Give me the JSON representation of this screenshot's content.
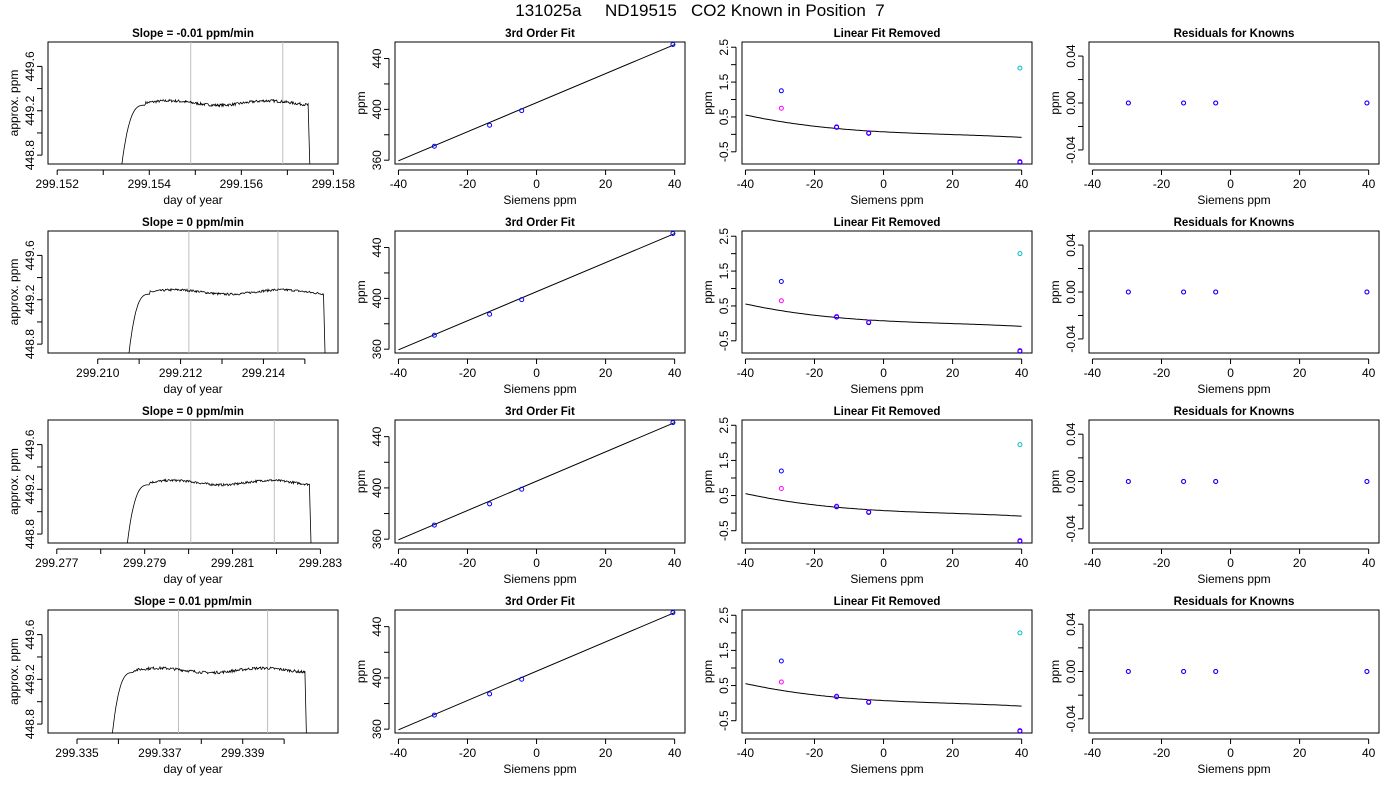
{
  "figure": {
    "title": "131025a     ND19515   CO2 Known in Position  7"
  },
  "chart_data": [
    {
      "panel": "r1c1",
      "type": "line",
      "title": "Slope =  -0.01  ppm/min",
      "xlabel": "day of year",
      "ylabel": "approx. ppm",
      "xlim": [
        299.1518,
        299.1581
      ],
      "ylim": [
        448.72,
        449.82
      ],
      "xticks": [
        299.152,
        299.153,
        299.154,
        299.155,
        299.156,
        299.157,
        299.158
      ],
      "xticklabels": [
        "299.152",
        "",
        "299.154",
        "",
        "299.156",
        "",
        "299.158"
      ],
      "yticks": [
        448.8,
        449.0,
        449.2,
        449.4,
        449.6
      ],
      "yticklabels": [
        "448.8",
        "",
        "449.2",
        "",
        "449.6"
      ],
      "vlines": [
        299.1549,
        299.1569
      ],
      "trace": {
        "x_start": 299.15335,
        "x_rise_end": 299.1539,
        "x_end": 299.15745,
        "x_drop": 299.1575,
        "plateau": 449.27,
        "noise": 0.012
      }
    },
    {
      "panel": "r1c2",
      "type": "scatter+line",
      "title": "3rd Order Fit",
      "xlabel": "Siemens ppm",
      "ylabel": "ppm",
      "xlim": [
        -41,
        43
      ],
      "ylim": [
        357,
        453
      ],
      "xticks": [
        -40,
        -20,
        0,
        20,
        40
      ],
      "xticklabels": [
        "-40",
        "-20",
        "0",
        "20",
        "40"
      ],
      "yticks": [
        360,
        380,
        400,
        420,
        440
      ],
      "yticklabels": [
        "360",
        "",
        "400",
        "",
        "440"
      ],
      "points": [
        [
          -29.6,
          371
        ],
        [
          -13.6,
          387.5
        ],
        [
          -4.3,
          399
        ],
        [
          39.5,
          451
        ]
      ],
      "fit": {
        "x0": -40,
        "x1": 40,
        "y0": 359.5,
        "y1": 451
      }
    },
    {
      "panel": "r1c3",
      "type": "scatter+line",
      "title": "Linear Fit Removed",
      "xlabel": "Siemens ppm",
      "ylabel": "ppm",
      "xlim": [
        -41,
        43
      ],
      "ylim": [
        -0.85,
        2.65
      ],
      "xticks": [
        -40,
        -20,
        0,
        20,
        40
      ],
      "xticklabels": [
        "-40",
        "-20",
        "0",
        "20",
        "40"
      ],
      "yticks": [
        -0.5,
        0.0,
        0.5,
        1.0,
        1.5,
        2.0,
        2.5
      ],
      "yticklabels": [
        "-0.5",
        "",
        "0.5",
        "",
        "1.5",
        "",
        "2.5"
      ],
      "points_blue": [
        [
          -29.6,
          1.25
        ],
        [
          -13.6,
          0.2
        ],
        [
          -4.3,
          0.03
        ],
        [
          39.5,
          -0.8
        ]
      ],
      "points_magenta": [
        [
          -29.6,
          0.75
        ],
        [
          -13.6,
          0.22
        ],
        [
          -4.3,
          0.05
        ],
        [
          39.5,
          -0.78
        ]
      ],
      "points_cyan": [
        [
          39.5,
          1.9
        ]
      ],
      "curve": [
        0.0733,
        -0.005325,
        0.0001014,
        -1.69e-06
      ]
    },
    {
      "panel": "r1c4",
      "type": "scatter",
      "title": "Residuals for Knowns",
      "xlabel": "Siemens ppm",
      "ylabel": "ppm",
      "xlim": [
        -41,
        43
      ],
      "ylim": [
        -0.052,
        0.052
      ],
      "xticks": [
        -40,
        -20,
        0,
        20,
        40
      ],
      "xticklabels": [
        "-40",
        "-20",
        "0",
        "20",
        "40"
      ],
      "yticks": [
        -0.04,
        -0.02,
        0.0,
        0.02,
        0.04
      ],
      "yticklabels": [
        "-0.04",
        "",
        "0.00",
        "",
        "0.04"
      ],
      "points": [
        [
          -29.6,
          0
        ],
        [
          -13.6,
          0
        ],
        [
          -4.3,
          0
        ],
        [
          39.5,
          0
        ]
      ]
    },
    {
      "panel": "r2c1",
      "type": "line",
      "title": "Slope =  0  ppm/min",
      "xlabel": "day of year",
      "ylabel": "approx. ppm",
      "xlim": [
        299.2088,
        299.2158
      ],
      "ylim": [
        448.72,
        449.82
      ],
      "xticks": [
        299.21,
        299.211,
        299.212,
        299.213,
        299.214,
        299.215
      ],
      "xticklabels": [
        "299.210",
        "",
        "299.212",
        "",
        "299.214",
        ""
      ],
      "yticks": [
        448.8,
        449.0,
        449.2,
        449.4,
        449.6
      ],
      "yticklabels": [
        "448.8",
        "",
        "449.2",
        "",
        "449.6"
      ],
      "vlines": [
        299.2122,
        299.21435
      ],
      "trace": {
        "x_start": 299.2107,
        "x_rise_end": 299.21125,
        "x_end": 299.21545,
        "x_drop": 299.2155,
        "plateau": 449.27,
        "noise": 0.01
      }
    },
    {
      "panel": "r2c2",
      "type": "scatter+line",
      "title": "3rd Order Fit",
      "xlabel": "Siemens ppm",
      "ylabel": "ppm",
      "xlim": [
        -41,
        43
      ],
      "ylim": [
        357,
        453
      ],
      "xticks": [
        -40,
        -20,
        0,
        20,
        40
      ],
      "xticklabels": [
        "-40",
        "-20",
        "0",
        "20",
        "40"
      ],
      "yticks": [
        360,
        380,
        400,
        420,
        440
      ],
      "yticklabels": [
        "360",
        "",
        "400",
        "",
        "440"
      ],
      "points": [
        [
          -29.6,
          371
        ],
        [
          -13.6,
          387.5
        ],
        [
          -4.3,
          399
        ],
        [
          39.5,
          451
        ]
      ],
      "fit": {
        "x0": -40,
        "x1": 40,
        "y0": 359.5,
        "y1": 451
      }
    },
    {
      "panel": "r2c3",
      "type": "scatter+line",
      "title": "Linear Fit Removed",
      "xlabel": "Siemens ppm",
      "ylabel": "ppm",
      "xlim": [
        -41,
        43
      ],
      "ylim": [
        -0.85,
        2.65
      ],
      "xticks": [
        -40,
        -20,
        0,
        20,
        40
      ],
      "xticklabels": [
        "-40",
        "-20",
        "0",
        "20",
        "40"
      ],
      "yticks": [
        -0.5,
        0.0,
        0.5,
        1.0,
        1.5,
        2.0,
        2.5
      ],
      "yticklabels": [
        "-0.5",
        "",
        "0.5",
        "",
        "1.5",
        "",
        "2.5"
      ],
      "points_blue": [
        [
          -29.6,
          1.2
        ],
        [
          -13.6,
          0.18
        ],
        [
          -4.3,
          0.02
        ],
        [
          39.5,
          -0.8
        ]
      ],
      "points_magenta": [
        [
          -29.6,
          0.65
        ],
        [
          -13.6,
          0.2
        ],
        [
          -4.3,
          0.04
        ],
        [
          39.5,
          -0.78
        ]
      ],
      "points_cyan": [
        [
          39.5,
          2.0
        ]
      ],
      "curve": [
        0.0733,
        -0.005325,
        0.0001014,
        -1.69e-06
      ]
    },
    {
      "panel": "r2c4",
      "type": "scatter",
      "title": "Residuals for Knowns",
      "xlabel": "Siemens ppm",
      "ylabel": "ppm",
      "xlim": [
        -41,
        43
      ],
      "ylim": [
        -0.052,
        0.052
      ],
      "xticks": [
        -40,
        -20,
        0,
        20,
        40
      ],
      "xticklabels": [
        "-40",
        "-20",
        "0",
        "20",
        "40"
      ],
      "yticks": [
        -0.04,
        -0.02,
        0.0,
        0.02,
        0.04
      ],
      "yticklabels": [
        "-0.04",
        "",
        "0.00",
        "",
        "0.04"
      ],
      "points": [
        [
          -29.6,
          0
        ],
        [
          -13.6,
          0
        ],
        [
          -4.3,
          0
        ],
        [
          39.5,
          0
        ]
      ]
    },
    {
      "panel": "r3c1",
      "type": "line",
      "title": "Slope =  0  ppm/min",
      "xlabel": "day of year",
      "ylabel": "approx. ppm",
      "xlim": [
        299.2768,
        299.2834
      ],
      "ylim": [
        448.72,
        449.82
      ],
      "xticks": [
        299.277,
        299.278,
        299.279,
        299.28,
        299.281,
        299.282,
        299.283
      ],
      "xticklabels": [
        "299.277",
        "",
        "299.279",
        "",
        "299.281",
        "",
        "299.283"
      ],
      "yticks": [
        448.8,
        449.0,
        449.2,
        449.4,
        449.6
      ],
      "yticklabels": [
        "448.8",
        "",
        "449.2",
        "",
        "449.6"
      ],
      "vlines": [
        299.28005,
        299.28195
      ],
      "trace": {
        "x_start": 299.27855,
        "x_rise_end": 299.2791,
        "x_end": 299.28275,
        "x_drop": 299.2828,
        "plateau": 449.26,
        "noise": 0.01
      }
    },
    {
      "panel": "r3c2",
      "type": "scatter+line",
      "title": "3rd Order Fit",
      "xlabel": "Siemens ppm",
      "ylabel": "ppm",
      "xlim": [
        -41,
        43
      ],
      "ylim": [
        357,
        453
      ],
      "xticks": [
        -40,
        -20,
        0,
        20,
        40
      ],
      "xticklabels": [
        "-40",
        "-20",
        "0",
        "20",
        "40"
      ],
      "yticks": [
        360,
        380,
        400,
        420,
        440
      ],
      "yticklabels": [
        "360",
        "",
        "400",
        "",
        "440"
      ],
      "points": [
        [
          -29.6,
          371
        ],
        [
          -13.6,
          387.5
        ],
        [
          -4.3,
          399
        ],
        [
          39.5,
          451
        ]
      ],
      "fit": {
        "x0": -40,
        "x1": 40,
        "y0": 359.5,
        "y1": 451
      }
    },
    {
      "panel": "r3c3",
      "type": "scatter+line",
      "title": "Linear Fit Removed",
      "xlabel": "Siemens ppm",
      "ylabel": "ppm",
      "xlim": [
        -41,
        43
      ],
      "ylim": [
        -0.85,
        2.65
      ],
      "xticks": [
        -40,
        -20,
        0,
        20,
        40
      ],
      "xticklabels": [
        "-40",
        "-20",
        "0",
        "20",
        "40"
      ],
      "yticks": [
        -0.5,
        0.0,
        0.5,
        1.0,
        1.5,
        2.0,
        2.5
      ],
      "yticklabels": [
        "-0.5",
        "",
        "0.5",
        "",
        "1.5",
        "",
        "2.5"
      ],
      "points_blue": [
        [
          -29.6,
          1.2
        ],
        [
          -13.6,
          0.18
        ],
        [
          -4.3,
          0.02
        ],
        [
          39.5,
          -0.8
        ]
      ],
      "points_magenta": [
        [
          -29.6,
          0.7
        ],
        [
          -13.6,
          0.2
        ],
        [
          -4.3,
          0.04
        ],
        [
          39.5,
          -0.78
        ]
      ],
      "points_cyan": [
        [
          39.5,
          1.95
        ]
      ],
      "curve": [
        0.0733,
        -0.005325,
        0.0001014,
        -1.69e-06
      ]
    },
    {
      "panel": "r3c4",
      "type": "scatter",
      "title": "Residuals for Knowns",
      "xlabel": "Siemens ppm",
      "ylabel": "ppm",
      "xlim": [
        -41,
        43
      ],
      "ylim": [
        -0.052,
        0.052
      ],
      "xticks": [
        -40,
        -20,
        0,
        20,
        40
      ],
      "xticklabels": [
        "-40",
        "-20",
        "0",
        "20",
        "40"
      ],
      "yticks": [
        -0.04,
        -0.02,
        0.0,
        0.02,
        0.04
      ],
      "yticklabels": [
        "-0.04",
        "",
        "0.00",
        "",
        "0.04"
      ],
      "points": [
        [
          -29.6,
          0
        ],
        [
          -13.6,
          0
        ],
        [
          -4.3,
          0
        ],
        [
          39.5,
          0
        ]
      ]
    },
    {
      "panel": "r4c1",
      "type": "line",
      "title": "Slope =  0.01  ppm/min",
      "xlabel": "day of year",
      "ylabel": "approx. ppm",
      "xlim": [
        299.3343,
        299.3413
      ],
      "ylim": [
        448.72,
        449.82
      ],
      "xticks": [
        299.335,
        299.336,
        299.337,
        299.338,
        299.339,
        299.34
      ],
      "xticklabels": [
        "299.335",
        "",
        "299.337",
        "",
        "299.339",
        ""
      ],
      "yticks": [
        448.8,
        449.0,
        449.2,
        449.4,
        449.6
      ],
      "yticklabels": [
        "448.8",
        "",
        "449.2",
        "",
        "449.6"
      ],
      "vlines": [
        299.33745,
        299.3396
      ],
      "trace": {
        "x_start": 299.3358,
        "x_rise_end": 299.33635,
        "x_end": 299.3405,
        "x_drop": 299.34055,
        "plateau": 449.28,
        "noise": 0.012
      }
    },
    {
      "panel": "r4c2",
      "type": "scatter+line",
      "title": "3rd Order Fit",
      "xlabel": "Siemens ppm",
      "ylabel": "ppm",
      "xlim": [
        -41,
        43
      ],
      "ylim": [
        357,
        453
      ],
      "xticks": [
        -40,
        -20,
        0,
        20,
        40
      ],
      "xticklabels": [
        "-40",
        "-20",
        "0",
        "20",
        "40"
      ],
      "yticks": [
        360,
        380,
        400,
        420,
        440
      ],
      "yticklabels": [
        "360",
        "",
        "400",
        "",
        "440"
      ],
      "points": [
        [
          -29.6,
          371
        ],
        [
          -13.6,
          387.5
        ],
        [
          -4.3,
          399
        ],
        [
          39.5,
          451
        ]
      ],
      "fit": {
        "x0": -40,
        "x1": 40,
        "y0": 359.5,
        "y1": 451
      }
    },
    {
      "panel": "r4c3",
      "type": "scatter+line",
      "title": "Linear Fit Removed",
      "xlabel": "Siemens ppm",
      "ylabel": "ppm",
      "xlim": [
        -41,
        43
      ],
      "ylim": [
        -0.85,
        2.65
      ],
      "xticks": [
        -40,
        -20,
        0,
        20,
        40
      ],
      "xticklabels": [
        "-40",
        "-20",
        "0",
        "20",
        "40"
      ],
      "yticks": [
        -0.5,
        0.0,
        0.5,
        1.0,
        1.5,
        2.0,
        2.5
      ],
      "yticklabels": [
        "-0.5",
        "",
        "0.5",
        "",
        "1.5",
        "",
        "2.5"
      ],
      "points_blue": [
        [
          -29.6,
          1.2
        ],
        [
          -13.6,
          0.18
        ],
        [
          -4.3,
          0.02
        ],
        [
          39.5,
          -0.8
        ]
      ],
      "points_magenta": [
        [
          -29.6,
          0.6
        ],
        [
          -13.6,
          0.2
        ],
        [
          -4.3,
          0.04
        ],
        [
          39.5,
          -0.78
        ]
      ],
      "points_cyan": [
        [
          39.5,
          2.0
        ]
      ],
      "curve": [
        0.0733,
        -0.005325,
        0.0001014,
        -1.69e-06
      ]
    },
    {
      "panel": "r4c4",
      "type": "scatter",
      "title": "Residuals for Knowns",
      "xlabel": "Siemens ppm",
      "ylabel": "ppm",
      "xlim": [
        -41,
        43
      ],
      "ylim": [
        -0.052,
        0.052
      ],
      "xticks": [
        -40,
        -20,
        0,
        20,
        40
      ],
      "xticklabels": [
        "-40",
        "-20",
        "0",
        "20",
        "40"
      ],
      "yticks": [
        -0.04,
        -0.02,
        0.0,
        0.02,
        0.04
      ],
      "yticklabels": [
        "-0.04",
        "",
        "0.00",
        "",
        "0.04"
      ],
      "points": [
        [
          -29.6,
          0
        ],
        [
          -13.6,
          0
        ],
        [
          -4.3,
          0
        ],
        [
          39.5,
          0
        ]
      ]
    }
  ],
  "colors": {
    "axis": "#000000",
    "line": "#000000",
    "vline": "#bebebe",
    "point_blue": "#0000ff",
    "point_magenta": "#ff00ff",
    "point_cyan": "#00bfc4"
  }
}
